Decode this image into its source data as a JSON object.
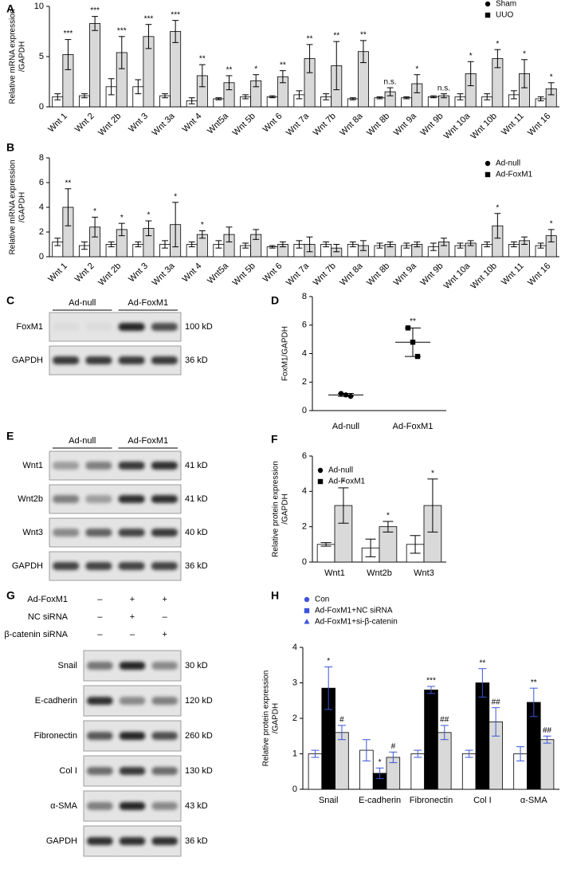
{
  "chart_data": [
    {
      "type": "bar",
      "label": "A",
      "ylabel": [
        "Relative mRNA expression",
        "/GAPDH"
      ],
      "categories": [
        "Wnt 1",
        "Wnt 2",
        "Wnt 2b",
        "Wnt 3",
        "Wnt 3a",
        "Wnt 4",
        "Wnt5a",
        "Wnt 5b",
        "Wnt 6",
        "Wnt 7a",
        "Wnt 7b",
        "Wnt 8a",
        "Wnt 8b",
        "Wnt 9a",
        "Wnt 9b",
        "Wnt 10a",
        "Wnt 10b",
        "Wnt 11",
        "Wnt 16"
      ],
      "series": [
        {
          "name": "Sham",
          "color": "#ffffff",
          "marker": "circle",
          "marker_color": "#000000",
          "values": [
            1.0,
            1.1,
            2.0,
            2.0,
            1.1,
            0.6,
            0.8,
            1.0,
            1.0,
            1.2,
            1.0,
            0.8,
            0.9,
            0.9,
            1.0,
            1.0,
            1.0,
            1.2,
            0.8
          ],
          "errors": [
            0.3,
            0.2,
            0.8,
            0.7,
            0.2,
            0.3,
            0.1,
            0.2,
            0.1,
            0.4,
            0.3,
            0.1,
            0.1,
            0.1,
            0.1,
            0.3,
            0.3,
            0.4,
            0.2
          ]
        },
        {
          "name": "UUO",
          "color": "#d9d9d9",
          "marker": "square",
          "marker_color": "#000000",
          "values": [
            5.2,
            8.3,
            5.4,
            7.0,
            7.5,
            3.1,
            2.4,
            2.6,
            3.0,
            4.8,
            4.1,
            5.5,
            1.5,
            2.3,
            1.1,
            3.3,
            4.8,
            3.3,
            1.8
          ],
          "errors": [
            1.5,
            0.7,
            1.6,
            1.2,
            1.1,
            1.1,
            0.7,
            0.6,
            0.6,
            1.4,
            2.4,
            1.1,
            0.4,
            0.9,
            0.2,
            1.2,
            0.9,
            1.4,
            0.6
          ],
          "sig": [
            "***",
            "***",
            "***",
            "***",
            "***",
            "**",
            "**",
            "*",
            "**",
            "**",
            "**",
            "**",
            "n.s.",
            "*",
            "n.s.",
            "*",
            "*",
            "*",
            "*"
          ]
        }
      ],
      "ylim": [
        0,
        10
      ],
      "yticks": [
        0,
        5,
        10
      ],
      "legend": "upper right"
    },
    {
      "type": "bar",
      "label": "B",
      "ylabel": [
        "Relative mRNA expression",
        "/GAPDH"
      ],
      "categories": [
        "Wnt 1",
        "Wnt 2",
        "Wnt 2b",
        "Wnt 3",
        "Wnt 3a",
        "Wnt 4",
        "Wnt5a",
        "Wnt 5b",
        "Wnt 6",
        "Wnt 7a",
        "Wnt 7b",
        "Wnt 8a",
        "Wnt 8b",
        "Wnt 9a",
        "Wnt 9b",
        "Wnt 10a",
        "Wnt 10b",
        "Wnt 11",
        "Wnt 16"
      ],
      "series": [
        {
          "name": "Ad-null",
          "color": "#ffffff",
          "marker": "circle",
          "marker_color": "#000000",
          "values": [
            1.2,
            0.9,
            1.0,
            1.0,
            1.0,
            1.0,
            1.0,
            0.9,
            0.8,
            1.0,
            1.0,
            1.0,
            0.9,
            0.9,
            0.8,
            0.9,
            1.0,
            1.0,
            0.9
          ],
          "errors": [
            0.3,
            0.3,
            0.2,
            0.2,
            0.3,
            0.2,
            0.3,
            0.2,
            0.1,
            0.3,
            0.2,
            0.2,
            0.2,
            0.2,
            0.3,
            0.2,
            0.2,
            0.2,
            0.2
          ]
        },
        {
          "name": "Ad-FoxM1",
          "color": "#d9d9d9",
          "marker": "square",
          "marker_color": "#000000",
          "values": [
            4.0,
            2.4,
            2.2,
            2.3,
            2.6,
            1.8,
            1.8,
            1.8,
            1.0,
            1.0,
            0.7,
            0.9,
            1.0,
            1.0,
            1.2,
            1.1,
            2.5,
            1.3,
            1.7
          ],
          "errors": [
            1.5,
            0.8,
            0.5,
            0.6,
            1.8,
            0.3,
            0.6,
            0.4,
            0.2,
            0.6,
            0.3,
            0.4,
            0.2,
            0.2,
            0.3,
            0.2,
            1.0,
            0.3,
            0.5
          ],
          "sig": [
            "**",
            "*",
            "*",
            "*",
            "*",
            "*",
            null,
            null,
            null,
            null,
            null,
            null,
            null,
            null,
            null,
            null,
            "*",
            null,
            "*"
          ]
        }
      ],
      "ylim": [
        0,
        8
      ],
      "yticks": [
        0,
        2,
        4,
        6,
        8
      ],
      "legend": "upper right"
    },
    {
      "type": "dot",
      "label": "D",
      "ylabel": [
        "FoxM1/GAPDH"
      ],
      "categories": [
        "Ad-null",
        "Ad-FoxM1"
      ],
      "markers": [
        "circle",
        "square"
      ],
      "color": "#000000",
      "points": [
        [
          1.2,
          1.1,
          1.0
        ],
        [
          5.8,
          4.8,
          3.8
        ]
      ],
      "means": [
        1.1,
        4.8
      ],
      "sd": [
        0.1,
        1.0
      ],
      "sig": [
        null,
        "**"
      ],
      "ylim": [
        0,
        8
      ],
      "yticks": [
        0,
        2,
        4,
        6,
        8
      ]
    },
    {
      "type": "bar",
      "label": "F",
      "ylabel": [
        "Relative protein expression",
        "/GAPDH"
      ],
      "categories": [
        "Wnt1",
        "Wnt2b",
        "Wnt3"
      ],
      "series": [
        {
          "name": "Ad-null",
          "color": "#ffffff",
          "marker": "circle",
          "marker_color": "#000000",
          "values": [
            1.0,
            0.8,
            1.0
          ],
          "errors": [
            0.1,
            0.5,
            0.5
          ]
        },
        {
          "name": "Ad-FoxM1",
          "color": "#d9d9d9",
          "marker": "square",
          "marker_color": "#000000",
          "values": [
            3.2,
            2.0,
            3.2
          ],
          "errors": [
            1.0,
            0.3,
            1.5
          ],
          "sig": [
            "*",
            "*",
            "*"
          ]
        }
      ],
      "ylim": [
        0,
        6
      ],
      "yticks": [
        0,
        2,
        4,
        6
      ],
      "legend": "upper left"
    },
    {
      "type": "bar",
      "label": "H",
      "ylabel": [
        "Relative protein expression",
        "/GAPDH"
      ],
      "categories": [
        "Snail",
        "E-cadherin",
        "Fibronectin",
        "Col I",
        "α-SMA"
      ],
      "series": [
        {
          "name": "Con",
          "color": "#ffffff",
          "marker": "circle",
          "marker_color": "#3b55d9",
          "values": [
            1.0,
            1.1,
            1.0,
            1.0,
            1.0
          ],
          "errors": [
            0.1,
            0.3,
            0.1,
            0.1,
            0.2
          ]
        },
        {
          "name": "Ad-FoxM1+NC siRNA",
          "color": "#000000",
          "marker": "square",
          "marker_color": "#3b55d9",
          "values": [
            2.85,
            0.45,
            2.8,
            3.0,
            2.45
          ],
          "errors": [
            0.6,
            0.15,
            0.1,
            0.4,
            0.4
          ],
          "sig": [
            "*",
            "*",
            "***",
            "**",
            "**"
          ]
        },
        {
          "name": "Ad-FoxM1+si-β-catenin",
          "color": "#d9d9d9",
          "marker": "triangle",
          "marker_color": "#3b55d9",
          "values": [
            1.6,
            0.9,
            1.6,
            1.9,
            1.4
          ],
          "errors": [
            0.2,
            0.15,
            0.2,
            0.4,
            0.1
          ],
          "sig": [
            "#",
            "#",
            "##",
            "##",
            "##"
          ]
        }
      ],
      "ylim": [
        0,
        4
      ],
      "yticks": [
        0,
        1,
        2,
        3,
        4
      ],
      "legend": "upper left"
    }
  ],
  "blots": [
    {
      "label": "C",
      "lanes": [
        "Ad-null",
        "Ad-FoxM1"
      ],
      "rows": [
        {
          "name": "FoxM1",
          "size": "100 kD"
        },
        {
          "name": "GAPDH",
          "size": "36 kD"
        }
      ]
    },
    {
      "label": "E",
      "lanes": [
        "Ad-null",
        "Ad-FoxM1"
      ],
      "rows": [
        {
          "name": "Wnt1",
          "size": "41 kD"
        },
        {
          "name": "Wnt2b",
          "size": "41 kD"
        },
        {
          "name": "Wnt3",
          "size": "40 kD"
        },
        {
          "name": "GAPDH",
          "size": "36 kD"
        }
      ]
    },
    {
      "label": "G",
      "conditions": [
        {
          "name": "Ad-FoxM1",
          "signs": [
            "–",
            "+",
            "+"
          ]
        },
        {
          "name": "NC siRNA",
          "signs": [
            "–",
            "+",
            "–"
          ]
        },
        {
          "name": "β-catenin siRNA",
          "signs": [
            "–",
            "–",
            "+"
          ]
        }
      ],
      "rows": [
        {
          "name": "Snail",
          "size": "30 kD"
        },
        {
          "name": "E-cadherin",
          "size": "120 kD"
        },
        {
          "name": "Fibronectin",
          "size": "260 kD"
        },
        {
          "name": "Col I",
          "size": "130 kD"
        },
        {
          "name": "α-SMA",
          "size": "43 kD"
        },
        {
          "name": "GAPDH",
          "size": "36 kD"
        }
      ]
    }
  ]
}
